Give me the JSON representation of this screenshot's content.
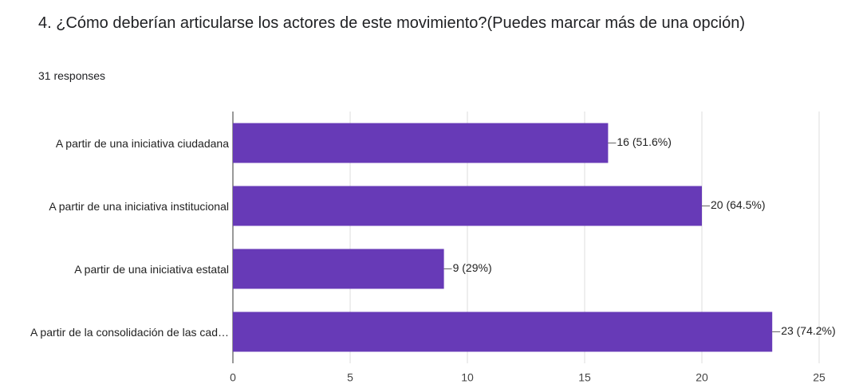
{
  "chart_data": {
    "type": "bar",
    "orientation": "horizontal",
    "title": "4. ¿Cómo deberían articularse los actores de este movimiento?(Puedes marcar más de una opción)",
    "subtitle": "31 responses",
    "categories": [
      "A partir de una iniciativa ciudadana",
      "A partir de una iniciativa institucional",
      "A partir de una iniciativa estatal",
      "A partir de la consolidación de las cad…"
    ],
    "values": [
      16,
      20,
      9,
      23
    ],
    "value_labels": [
      "16 (51.6%)",
      "20 (64.5%)",
      "9 (29%)",
      "23 (74.2%)"
    ],
    "color": "#673ab7",
    "xlim": [
      0,
      25
    ],
    "xticks": [
      0,
      5,
      10,
      15,
      20,
      25
    ],
    "grid": true
  }
}
